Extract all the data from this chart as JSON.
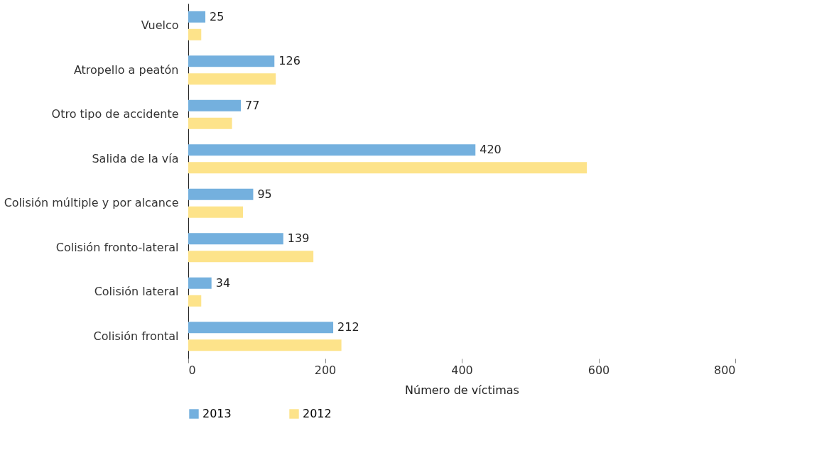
{
  "chart_data": {
    "type": "bar",
    "orientation": "horizontal",
    "xlabel": "Número de víctimas",
    "categories": [
      "Vuelco",
      "Atropello a peatón",
      "Otro tipo de accidente",
      "Salida de la vía",
      "Colisión múltiple y por alcance",
      "Colisión fronto-lateral",
      "Colisión lateral",
      "Colisión frontal"
    ],
    "series": [
      {
        "name": "2013",
        "color": "#74b0de",
        "values": [
          25,
          126,
          77,
          420,
          95,
          139,
          34,
          212
        ],
        "value_labels": [
          "25",
          "126",
          "77",
          "420",
          "95",
          "139",
          "34",
          "212"
        ]
      },
      {
        "name": "2012",
        "color": "#fde38a",
        "values": [
          19,
          128,
          64,
          583,
          80,
          183,
          19,
          224
        ]
      }
    ],
    "xlim": [
      0,
      800
    ],
    "xticks": [
      0,
      200,
      400,
      600,
      800
    ],
    "grid": false,
    "legend": "bottom"
  }
}
